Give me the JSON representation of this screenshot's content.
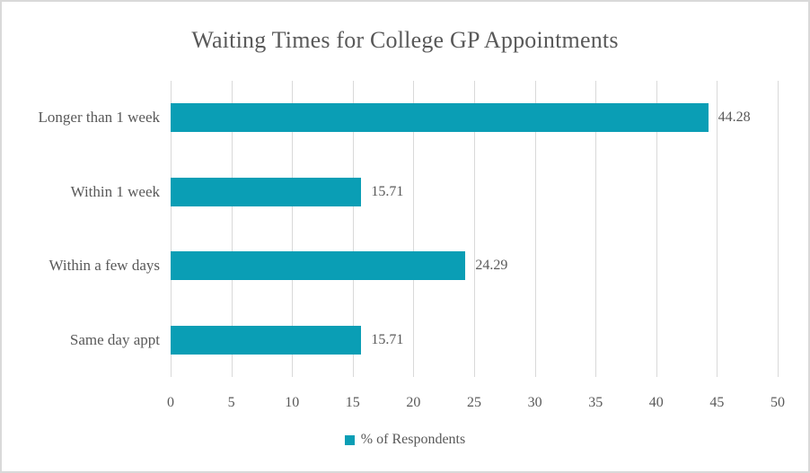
{
  "chart_data": {
    "type": "bar",
    "orientation": "horizontal",
    "title": "Waiting Times for College GP Appointments",
    "categories": [
      "Longer than 1 week",
      "Within 1 week",
      "Within a few days",
      "Same day appt"
    ],
    "values": [
      44.28,
      15.71,
      24.29,
      15.71
    ],
    "value_labels": [
      "44.28",
      "15.71",
      "24.29",
      "15.71"
    ],
    "series_name": "% of Respondents",
    "xlim": [
      0,
      50
    ],
    "x_ticks": [
      0,
      5,
      10,
      15,
      20,
      25,
      30,
      35,
      40,
      45,
      50
    ],
    "grid": "vertical-only",
    "legend_position": "bottom",
    "colors": {
      "bar": "#0a9eb5",
      "grid": "#d9d9d9",
      "text": "#595959",
      "border": "#d9d9d9",
      "background": "#ffffff"
    }
  },
  "legend": {
    "label": "% of Respondents"
  }
}
